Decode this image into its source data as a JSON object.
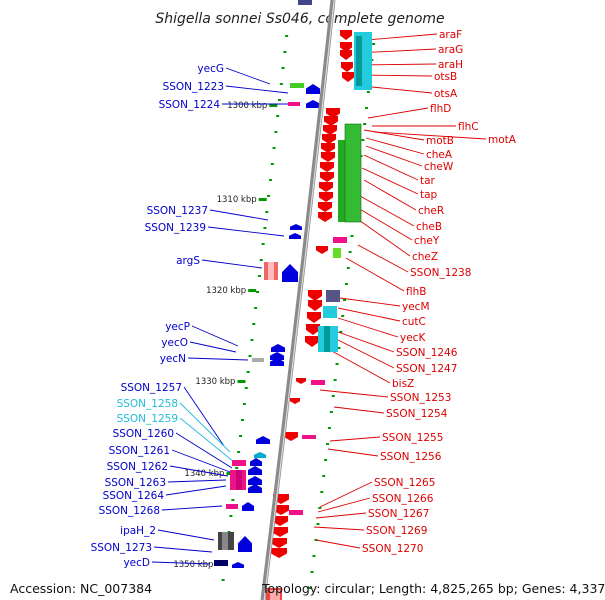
{
  "title": "Shigella sonnei Ss046, complete genome",
  "footer": {
    "accession": "Accession: NC_007384",
    "topology": "Topology: circular; Length: 4,825,265 bp; Genes: 4,337"
  },
  "colors": {
    "backbone": "#8a8a8a",
    "right_label": "#dd0000",
    "left_label": "#0000cc",
    "left_label_light": "#22bbdd",
    "tick": "#009900"
  },
  "ticks": [
    "1300 kbp",
    "1310 kbp",
    "1320 kbp",
    "1330 kbp",
    "1340 kbp",
    "1350 kbp"
  ],
  "right_labels": [
    "araF",
    "araG",
    "araH",
    "otsB",
    "otsA",
    "flhD",
    "flhC",
    "motA",
    "motB",
    "cheA",
    "cheW",
    "tar",
    "tap",
    "cheR",
    "cheB",
    "cheY",
    "cheZ",
    "SSON_1238",
    "flhB",
    "yecM",
    "cutC",
    "yecK",
    "SSON_1246",
    "SSON_1247",
    "bisZ",
    "SSON_1253",
    "SSON_1254",
    "SSON_1255",
    "SSON_1256",
    "SSON_1265",
    "SSON_1266",
    "SSON_1267",
    "SSON_1269",
    "SSON_1270"
  ],
  "left_labels": [
    "yecG",
    "SSON_1223",
    "SSON_1224",
    "SSON_1237",
    "SSON_1239",
    "argS",
    "yecP",
    "yecO",
    "yecN",
    "SSON_1257",
    "SSON_1258",
    "SSON_1259",
    "SSON_1260",
    "SSON_1261",
    "SSON_1262",
    "SSON_1263",
    "SSON_1264",
    "SSON_1268",
    "ipaH_2",
    "SSON_1273",
    "yecD"
  ],
  "left_label_colors": [
    "#0000cc",
    "#0000cc",
    "#0000cc",
    "#0000cc",
    "#0000cc",
    "#0000cc",
    "#0000cc",
    "#0000cc",
    "#0000cc",
    "#0000cc",
    "#22bbdd",
    "#22bbdd",
    "#0000cc",
    "#0000cc",
    "#0000cc",
    "#0000cc",
    "#0000cc",
    "#0000cc",
    "#0000cc",
    "#0000cc",
    "#0000cc"
  ]
}
